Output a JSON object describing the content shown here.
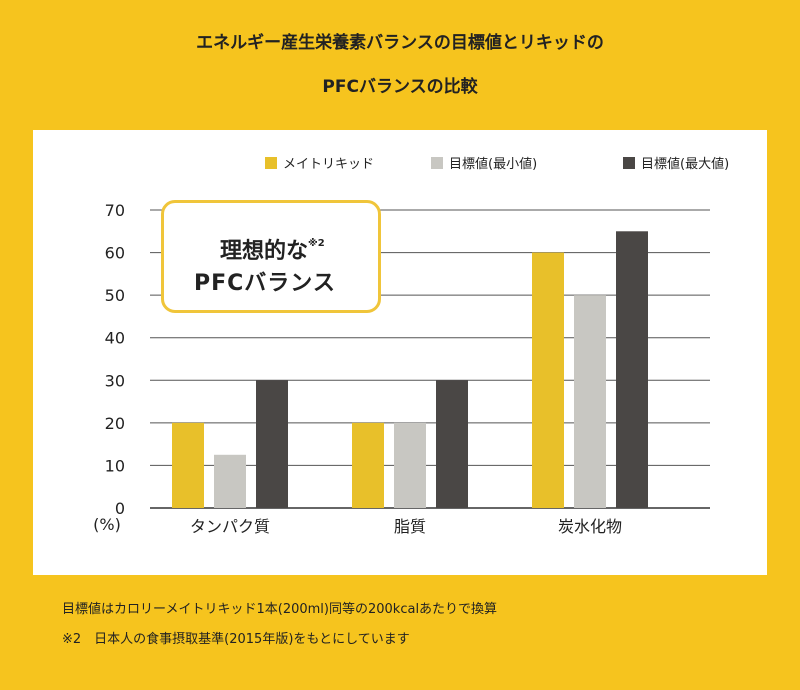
{
  "header": {
    "title_line1": "エネルギー産生栄養素バランスの目標値とリキッドの",
    "title_line2": "PFCバランスの比較"
  },
  "callout": {
    "line1": "理想的な",
    "superscript": "※2",
    "line2": "PFCバランス"
  },
  "notes": {
    "note1": "目標値はカロリーメイトリキッド1本(200ml)同等の200kcalあたりで換算",
    "note2": "※2　日本人の食事摂取基準(2015年版)をもとにしています"
  },
  "chart_data": {
    "type": "bar",
    "categories": [
      "タンパク質",
      "脂質",
      "炭水化物"
    ],
    "series": [
      {
        "name": "メイトリキッド",
        "values": [
          20,
          20,
          60
        ],
        "color": "#e8c02a"
      },
      {
        "name": "目標値(最小値)",
        "values": [
          12.5,
          20,
          50
        ],
        "color": "#c8c7c2"
      },
      {
        "name": "目標値(最大値)",
        "values": [
          30,
          30,
          65
        ],
        "color": "#4a4745"
      }
    ],
    "ylim": [
      0,
      70
    ],
    "yticks": [
      0,
      10,
      20,
      30,
      40,
      50,
      60,
      70
    ],
    "ylabel": "(%)",
    "grid": true,
    "legend_position": "top-right"
  }
}
